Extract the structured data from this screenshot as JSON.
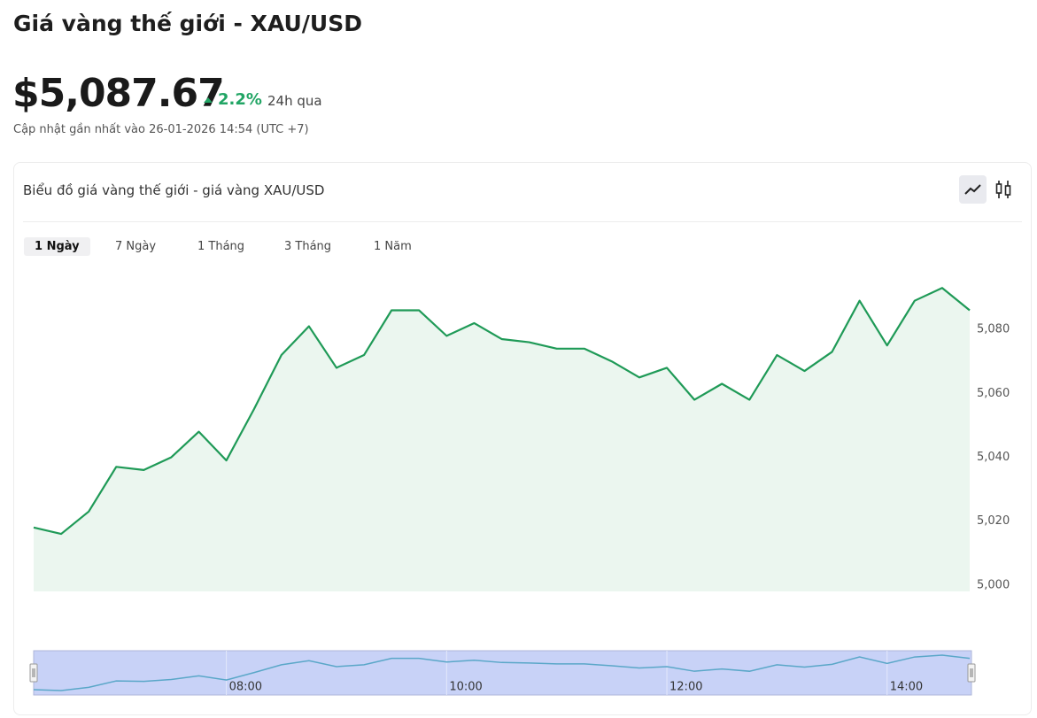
{
  "header": {
    "title": "Giá vàng thế giới - XAU/USD",
    "price": "$5,087.67",
    "change": "2.2%",
    "change_period": "24h qua",
    "updated": "Cập nhật gần nhất vào 26-01-2026 14:54 (UTC +7)"
  },
  "card": {
    "title": "Biểu đồ giá vàng thế giới - giá vàng XAU/USD",
    "tabs": [
      "1 Ngày",
      "7 Ngày",
      "1 Tháng",
      "3 Tháng",
      "1 Năm"
    ],
    "active_tab": 0
  },
  "chart_data": {
    "type": "area",
    "categories": [
      null,
      null,
      null,
      null,
      null,
      null,
      null,
      "08:00",
      null,
      null,
      null,
      null,
      null,
      null,
      null,
      "10:00",
      null,
      null,
      null,
      null,
      null,
      null,
      null,
      "12:00",
      null,
      null,
      null,
      null,
      null,
      null,
      null,
      "14:00",
      null,
      null,
      null
    ],
    "series": [
      {
        "color": "#1f9a57",
        "values": [
          5018,
          5016,
          5023,
          5037,
          5036,
          5040,
          5048,
          5039,
          5055,
          5072,
          5081,
          5068,
          5072,
          5086,
          5086,
          5078,
          5082,
          5077,
          5076,
          5074,
          5074,
          5070,
          5065,
          5068,
          5058,
          5063,
          5058,
          5072,
          5067,
          5073,
          5089,
          5075,
          5089,
          5093,
          5086
        ]
      }
    ],
    "fill_color": "#ebf6ef",
    "ylim": [
      4998,
      5100
    ],
    "yticks": [
      {
        "value": 5000,
        "label": "5,000"
      },
      {
        "value": 5020,
        "label": "5,020"
      },
      {
        "value": 5040,
        "label": "5,040"
      },
      {
        "value": 5060,
        "label": "5,060"
      },
      {
        "value": 5080,
        "label": "5,080"
      }
    ],
    "grid": false,
    "navigator": true
  }
}
